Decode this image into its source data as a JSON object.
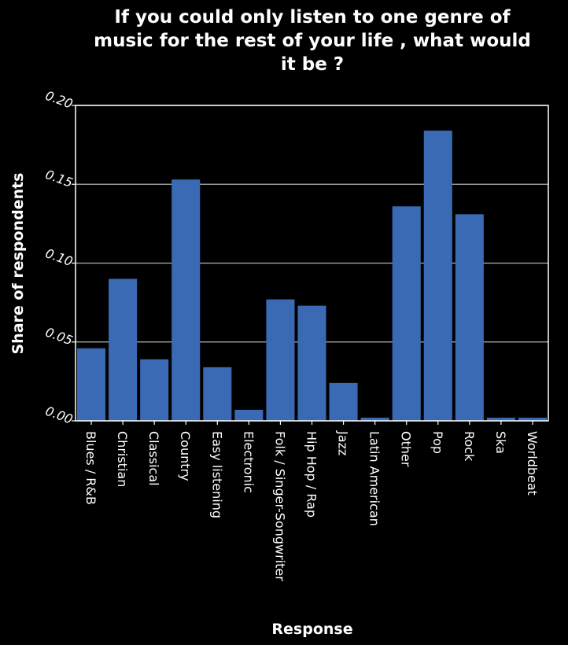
{
  "chart_data": {
    "type": "bar",
    "title_lines": [
      "If you could only listen to one genre of",
      "music for the rest of your life , what would",
      "it be ?"
    ],
    "xlabel": "Response",
    "ylabel": "Share of respondents",
    "ylim": [
      0,
      0.2
    ],
    "yticks": [
      "0.00",
      "0.05",
      "0.10",
      "0.15",
      "0.20"
    ],
    "grid": "horizontal",
    "categories": [
      "Blues / R&B",
      "Christian",
      "Classical",
      "Country",
      "Easy listening",
      "Electronic",
      "Folk / Singer-Songwriter",
      "Hip Hop / Rap",
      "Jazz",
      "Latin American",
      "Other",
      "Pop",
      "Rock",
      "Ska",
      "Worldbeat"
    ],
    "values": [
      0.046,
      0.09,
      0.039,
      0.153,
      0.034,
      0.007,
      0.077,
      0.073,
      0.024,
      0.002,
      0.136,
      0.184,
      0.131,
      0.002,
      0.002
    ],
    "colors": {
      "background": "#000000",
      "bar": "#3a6ab4",
      "gridline": "#b4b4b4",
      "text": "#ffffff"
    }
  }
}
